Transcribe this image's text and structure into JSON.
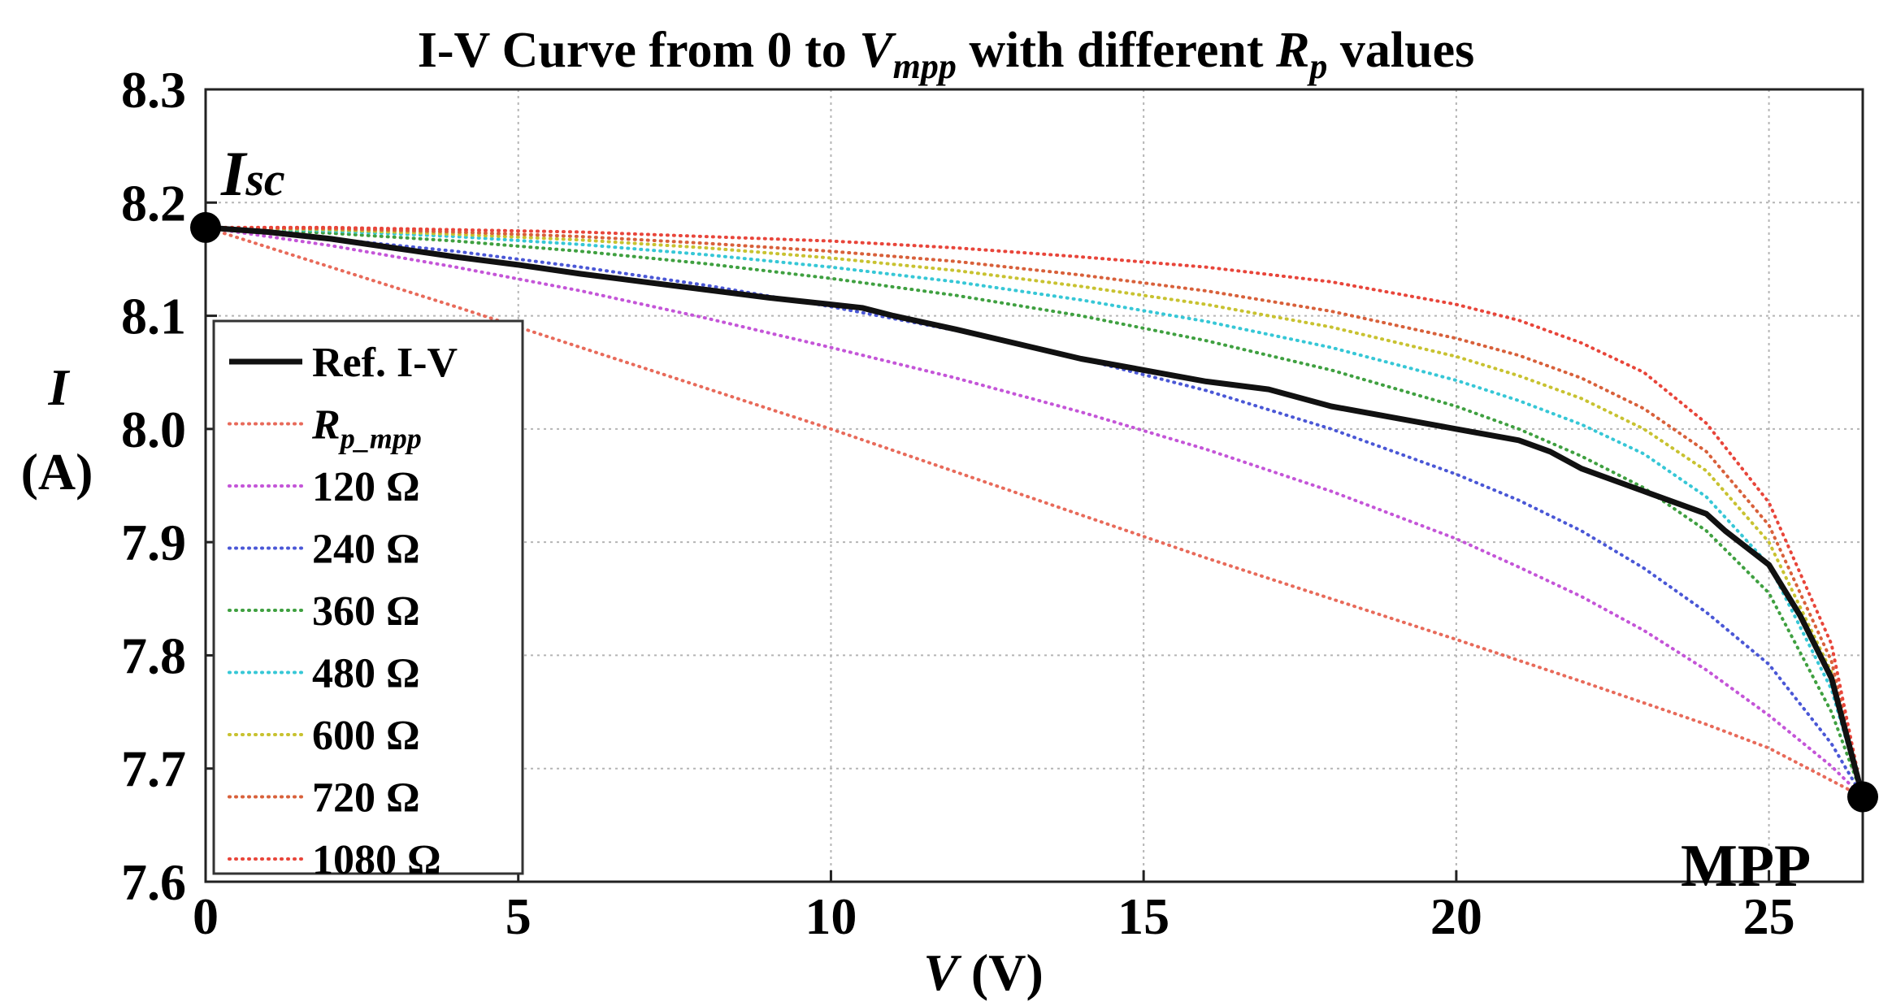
{
  "chart_data": {
    "type": "line",
    "title": {
      "prefix": "I-V Curve from 0 to ",
      "var1": "V",
      "var1_sub": "mpp",
      "middle": " with different ",
      "var2": "R",
      "var2_sub": "p",
      "suffix": " values"
    },
    "xlabel": {
      "var": "V",
      "unit": " (V)"
    },
    "ylabel": {
      "var": "I",
      "unit": "(A)"
    },
    "xlim": [
      0,
      26.5
    ],
    "ylim": [
      7.6,
      8.3
    ],
    "xticks": [
      0,
      5,
      10,
      15,
      20,
      25
    ],
    "xtick_labels": [
      "0",
      "5",
      "10",
      "15",
      "20",
      "25"
    ],
    "yticks": [
      7.6,
      7.7,
      7.8,
      7.9,
      8.0,
      8.1,
      8.2,
      8.3
    ],
    "ytick_labels": [
      "7.6",
      "7.7",
      "7.8",
      "7.9",
      "8.0",
      "8.1",
      "8.2",
      "8.3"
    ],
    "grid": true,
    "legend_position": "left-middle",
    "annotations": {
      "isc": {
        "label": "I",
        "sub": "sc",
        "x": 0,
        "y": 8.178
      },
      "mpp": {
        "label": "MPP",
        "x": 26.5,
        "y": 7.675
      }
    },
    "series": [
      {
        "name": "Ref. I-V",
        "color": "#111111",
        "style": "solid",
        "x": [
          0,
          1,
          2,
          3,
          4,
          5,
          6,
          7,
          8,
          9,
          9.5,
          10,
          10.5,
          11,
          12,
          13,
          14,
          15,
          16,
          17,
          18,
          19,
          20,
          21,
          21.5,
          22,
          23,
          24,
          24.3,
          25,
          25.5,
          26,
          26.5
        ],
        "y": [
          8.178,
          8.174,
          8.168,
          8.16,
          8.152,
          8.145,
          8.137,
          8.13,
          8.123,
          8.116,
          8.113,
          8.11,
          8.107,
          8.1,
          8.088,
          8.075,
          8.062,
          8.052,
          8.042,
          8.035,
          8.02,
          8.01,
          8.0,
          7.99,
          7.98,
          7.965,
          7.945,
          7.925,
          7.91,
          7.88,
          7.835,
          7.78,
          7.675
        ]
      },
      {
        "name": "R_p_mpp",
        "name_base": "R",
        "name_sub": "p_mpp",
        "color": "#e86a5a",
        "style": "dotted",
        "x": [
          0,
          2,
          4,
          6,
          8,
          10,
          12,
          14,
          16,
          18,
          20,
          22,
          24,
          25,
          26.5
        ],
        "y": [
          8.178,
          8.143,
          8.108,
          8.072,
          8.036,
          8.0,
          7.962,
          7.924,
          7.886,
          7.85,
          7.814,
          7.777,
          7.739,
          7.718,
          7.675
        ]
      },
      {
        "name": "120 Ω",
        "color": "#c455d8",
        "style": "dotted",
        "x": [
          0,
          2,
          4,
          6,
          8,
          10,
          12,
          14,
          16,
          18,
          20,
          21,
          22,
          23,
          24,
          25,
          26,
          26.5
        ],
        "y": [
          8.178,
          8.162,
          8.143,
          8.122,
          8.098,
          8.072,
          8.045,
          8.015,
          7.982,
          7.945,
          7.903,
          7.878,
          7.852,
          7.822,
          7.787,
          7.747,
          7.702,
          7.675
        ]
      },
      {
        "name": "240 Ω",
        "color": "#4a57d6",
        "style": "dotted",
        "x": [
          0,
          2,
          4,
          6,
          8,
          10,
          12,
          14,
          16,
          18,
          20,
          21,
          22,
          23,
          24,
          25,
          26,
          26.5
        ],
        "y": [
          8.178,
          8.168,
          8.157,
          8.143,
          8.127,
          8.108,
          8.087,
          8.062,
          8.034,
          8.0,
          7.96,
          7.937,
          7.91,
          7.877,
          7.838,
          7.792,
          7.722,
          7.675
        ]
      },
      {
        "name": "360 Ω",
        "color": "#3fa040",
        "style": "dotted",
        "x": [
          0,
          2,
          4,
          6,
          8,
          10,
          12,
          14,
          16,
          18,
          20,
          21,
          22,
          23,
          24,
          25,
          26,
          26.5
        ],
        "y": [
          8.178,
          8.173,
          8.166,
          8.157,
          8.146,
          8.133,
          8.118,
          8.1,
          8.078,
          8.052,
          8.02,
          8.0,
          7.976,
          7.948,
          7.91,
          7.855,
          7.75,
          7.675
        ]
      },
      {
        "name": "480 Ω",
        "color": "#36c7d6",
        "style": "dotted",
        "x": [
          0,
          2,
          4,
          6,
          8,
          10,
          12,
          14,
          16,
          18,
          20,
          21,
          22,
          23,
          24,
          25,
          26,
          26.5
        ],
        "y": [
          8.178,
          8.175,
          8.17,
          8.163,
          8.154,
          8.143,
          8.13,
          8.114,
          8.095,
          8.072,
          8.043,
          8.025,
          8.004,
          7.978,
          7.94,
          7.88,
          7.77,
          7.675
        ]
      },
      {
        "name": "600 Ω",
        "color": "#c8c230",
        "style": "dotted",
        "x": [
          0,
          2,
          4,
          6,
          8,
          10,
          12,
          14,
          16,
          18,
          20,
          21,
          22,
          23,
          24,
          25,
          26,
          26.5
        ],
        "y": [
          8.178,
          8.176,
          8.172,
          8.167,
          8.16,
          8.151,
          8.14,
          8.126,
          8.11,
          8.09,
          8.064,
          8.047,
          8.027,
          8.0,
          7.963,
          7.9,
          7.785,
          7.675
        ]
      },
      {
        "name": "720 Ω",
        "color": "#d8603a",
        "style": "dotted",
        "x": [
          0,
          2,
          4,
          6,
          8,
          10,
          12,
          14,
          16,
          18,
          20,
          21,
          22,
          23,
          24,
          25,
          26,
          26.5
        ],
        "y": [
          8.178,
          8.177,
          8.174,
          8.17,
          8.164,
          8.157,
          8.148,
          8.136,
          8.122,
          8.104,
          8.08,
          8.065,
          8.045,
          8.018,
          7.98,
          7.915,
          7.795,
          7.675
        ]
      },
      {
        "name": "1080 Ω",
        "color": "#e8453a",
        "style": "dotted",
        "x": [
          0,
          2,
          4,
          6,
          8,
          10,
          12,
          14,
          16,
          18,
          20,
          21,
          22,
          23,
          24,
          25,
          26,
          26.5
        ],
        "y": [
          8.178,
          8.178,
          8.176,
          8.174,
          8.17,
          8.166,
          8.16,
          8.152,
          8.143,
          8.13,
          8.11,
          8.096,
          8.076,
          8.05,
          8.005,
          7.935,
          7.81,
          7.675
        ]
      }
    ]
  }
}
